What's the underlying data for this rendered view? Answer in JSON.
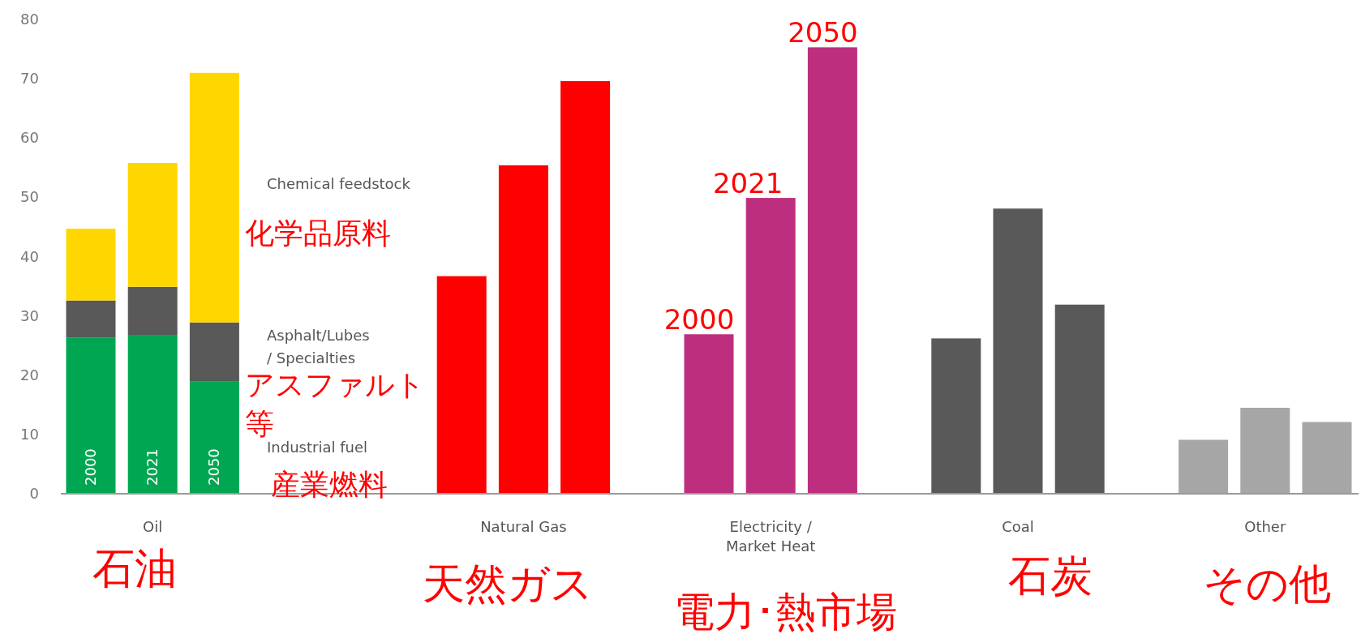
{
  "chart_data": {
    "type": "bar",
    "stacked": true,
    "categories": [
      null,
      "Oil",
      null,
      null,
      null,
      null,
      null,
      "Natural Gas",
      null,
      null,
      null,
      "Electricity /\nMarket Heat",
      null,
      null,
      null,
      "Coal",
      null,
      null,
      null,
      "Other",
      null
    ],
    "series": [
      {
        "values": [
          null,
          null,
          null,
          null,
          null,
          null,
          36.7,
          55.4,
          69.6,
          null,
          26.9,
          49.9,
          75.3,
          null,
          26.2,
          48.1,
          31.9,
          null,
          9.1,
          14.5,
          12.1
        ],
        "colors": [
          null,
          null,
          null,
          null,
          null,
          null,
          "#ff0000",
          "#ff0000",
          "#ff0000",
          null,
          "#bd2f7e",
          "#bd2f7e",
          "#bd2f7e",
          null,
          "#595959",
          "#595959",
          "#595959",
          null,
          "#a6a6a6",
          "#a6a6a6",
          "#a6a6a6"
        ]
      },
      {
        "name": "Industrial fuel",
        "color": "#00a651",
        "values": [
          26.3,
          26.8,
          18.9,
          null,
          null,
          null,
          null,
          null,
          null,
          null,
          null,
          null,
          null,
          null,
          null,
          null,
          null,
          null,
          null,
          null,
          null
        ]
      },
      {
        "name": "Asphalt/Lubes\n/ Specialties",
        "color": "#595959",
        "values": [
          6.3,
          8.1,
          10.0,
          null,
          null,
          null,
          null,
          null,
          null,
          null,
          null,
          null,
          null,
          null,
          null,
          null,
          null,
          null,
          null,
          null,
          null
        ]
      },
      {
        "name": "Chemical feedstock",
        "color": "#ffd700",
        "values": [
          12.1,
          20.9,
          42.1,
          null,
          null,
          null,
          null,
          null,
          null,
          null,
          null,
          null,
          null,
          null,
          null,
          null,
          null,
          null,
          null,
          null,
          null
        ]
      }
    ],
    "ylim": [
      0,
      80
    ],
    "yticks": [
      0,
      10,
      20,
      30,
      40,
      50,
      60,
      70,
      80
    ],
    "annotations": [
      "2000",
      "2021",
      "2050",
      "2000",
      "2021",
      "2050",
      "産業燃料",
      "アスファルト",
      "等",
      "化学品原料",
      "石油",
      "天然ガス",
      "電力･熱市場",
      "石炭",
      "その他"
    ]
  }
}
